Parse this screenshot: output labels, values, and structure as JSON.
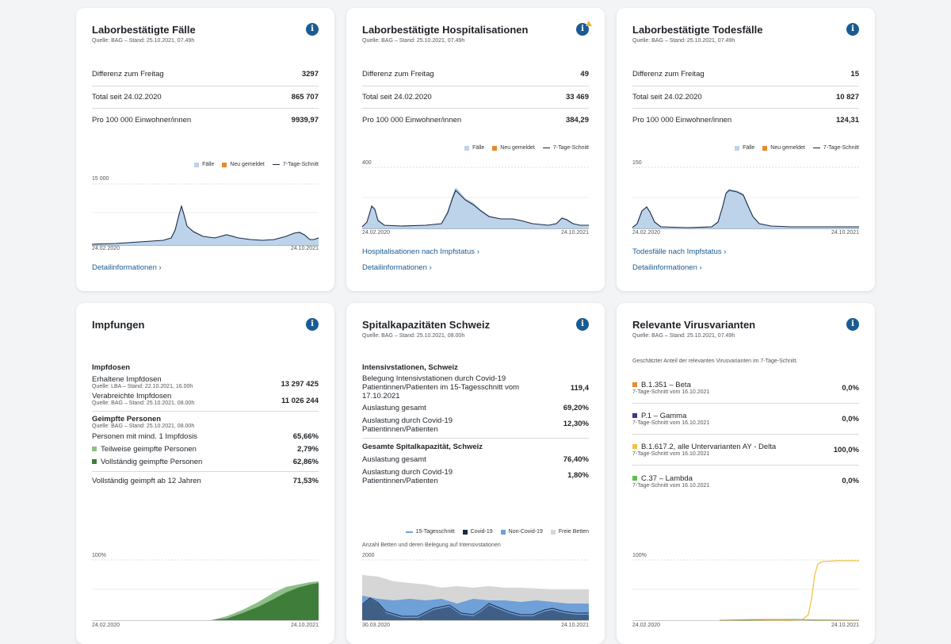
{
  "cards": {
    "faelle": {
      "title": "Laborbestätigte Fälle",
      "source": "Quelle: BAG – Stand: 25.10.2021, 07.49h",
      "rows": [
        {
          "label": "Differenz zum Freitag",
          "value": "3297"
        },
        {
          "label": "Total seit 24.02.2020",
          "value": "865 707"
        },
        {
          "label": "Pro 100 000 Einwohner/innen",
          "value": "9939,97"
        }
      ],
      "legend": {
        "bars": "Fälle",
        "new": "Neu gemeldet",
        "avg": "7-Tage-Schnitt"
      },
      "ymax": "15 000",
      "x_start": "24.02.2020",
      "x_end": "24.10.2021",
      "detail_link": "Detailinformationen"
    },
    "hosp": {
      "title": "Laborbestätigte Hospitalisationen",
      "source": "Quelle: BAG – Stand: 25.10.2021, 07.49h",
      "rows": [
        {
          "label": "Differenz zum Freitag",
          "value": "49"
        },
        {
          "label": "Total seit 24.02.2020",
          "value": "33 469"
        },
        {
          "label": "Pro 100 000 Einwohner/innen",
          "value": "384,29"
        }
      ],
      "legend": {
        "bars": "Fälle",
        "new": "Neu gemeldet",
        "avg": "7-Tage-Schnitt"
      },
      "ymax": "400",
      "x_start": "24.02.2020",
      "x_end": "24.10.2021",
      "link1": "Hospitalisationen nach Impfstatus",
      "detail_link": "Detailinformationen"
    },
    "tod": {
      "title": "Laborbestätigte Todesfälle",
      "source": "Quelle: BAG – Stand: 25.10.2021, 07.49h",
      "rows": [
        {
          "label": "Differenz zum Freitag",
          "value": "15"
        },
        {
          "label": "Total seit 24.02.2020",
          "value": "10 827"
        },
        {
          "label": "Pro 100 000 Einwohner/innen",
          "value": "124,31"
        }
      ],
      "legend": {
        "bars": "Fälle",
        "new": "Neu gemeldet",
        "avg": "7-Tage-Schnitt"
      },
      "ymax": "150",
      "x_start": "24.02.2020",
      "x_end": "24.10.2021",
      "link1": "Todesfälle nach Impfstatus",
      "detail_link": "Detailinformationen"
    },
    "impf": {
      "title": "Impfungen",
      "doses_h": "Impfdosen",
      "received_label": "Erhaltene Impfdosen",
      "received_source": "Quelle: LBA – Stand: 22.10.2021, 16.00h",
      "received_value": "13 297 425",
      "given_label": "Verabreichte Impfdosen",
      "given_source": "Quelle: BAG – Stand: 25.10.2021, 08.00h",
      "given_value": "11 026 244",
      "persons_h": "Geimpfte Personen",
      "persons_source": "Quelle: BAG – Stand: 25.10.2021, 08.00h",
      "min1_label": "Personen mit mind. 1 Impfdosis",
      "min1_value": "65,66%",
      "partial_label": "Teilweise geimpfte Personen",
      "partial_value": "2,79%",
      "full_label": "Vollständig geimpfte Personen",
      "full_value": "62,86%",
      "full12_label": "Vollständig geimpft ab 12 Jahren",
      "full12_value": "71,53%",
      "ymax": "100%",
      "x_start": "24.02.2020",
      "x_end": "24.10.2021"
    },
    "spital": {
      "title": "Spitalkapazitäten Schweiz",
      "source": "Quelle: BAG – Stand: 25.10.2021, 08.00h",
      "ips_h": "Intensivstationen, Schweiz",
      "ips_rows": [
        {
          "label": "Belegung Intensivstationen durch Covid-19 Patientinnen/Patienten im 15-Tagesschnitt vom 17.10.2021",
          "value": "119,4"
        },
        {
          "label": "Auslastung gesamt",
          "value": "69,20%"
        },
        {
          "label": "Auslastung durch Covid-19 Patientinnen/Patienten",
          "value": "12,30%"
        }
      ],
      "total_h": "Gesamte Spitalkapazität, Schweiz",
      "total_rows": [
        {
          "label": "Auslastung gesamt",
          "value": "76,40%"
        },
        {
          "label": "Auslastung durch Covid-19 Patientinnen/Patienten",
          "value": "1,80%"
        }
      ],
      "legend": {
        "avg": "15-Tagesschnitt",
        "covid": "Covid-19",
        "noncovid": "Non-Covid-19",
        "free": "Freie Betten"
      },
      "chart_caption": "Anzahl Betten und deren Belegung auf Intensivstationen",
      "ymax": "2000",
      "x_start": "30.03.2020",
      "x_end": "24.10.2021"
    },
    "varianten": {
      "title": "Relevante Virusvarianten",
      "source": "Quelle: BAG – Stand: 25.10.2021, 07.49h",
      "intro": "Geschätzter Anteil der relevanten Virusvarianten im 7-Tage-Schnitt.",
      "items": [
        {
          "name": "B.1.351 – Beta",
          "sub": "7-Tage-Schnitt vom 16.10.2021",
          "value": "0,0%",
          "color": "#e8892f"
        },
        {
          "name": "P.1 – Gamma",
          "sub": "7-Tage-Schnitt vom 16.10.2021",
          "value": "0,0%",
          "color": "#3b3b8f"
        },
        {
          "name": "B.1.617.2, alle Untervarianten AY - Delta",
          "sub": "7-Tage-Schnitt vom 16.10.2021",
          "value": "100,0%",
          "color": "#f3c243"
        },
        {
          "name": "C.37 – Lambda",
          "sub": "7-Tage-Schnitt vom 16.10.2021",
          "value": "0,0%",
          "color": "#5cc14a"
        }
      ],
      "ymax": "100%",
      "x_start": "24.02.2020",
      "x_end": "24.10.2021"
    }
  },
  "colors": {
    "bar_fill": "#bcd3ea",
    "new_reported": "#e8892f",
    "avg_line": "#1a2a44",
    "link": "#1b5b93",
    "vacc_full": "#3f7d3a",
    "vacc_partial": "#8fbf88",
    "covid": "#1a2a44",
    "noncovid": "#6fa0d8",
    "free_beds": "#d6d6d6"
  }
}
